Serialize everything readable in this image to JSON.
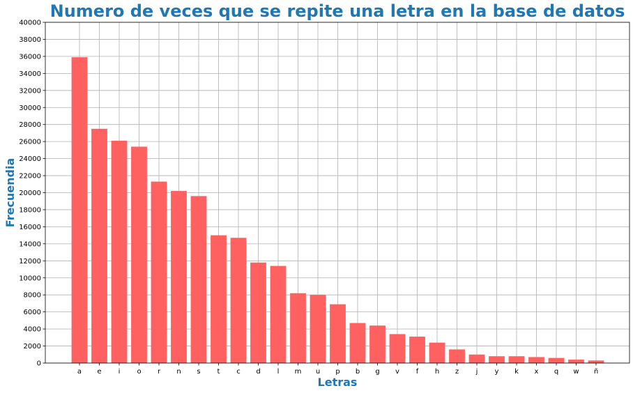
{
  "chart_data": {
    "type": "bar",
    "title": "Numero de veces que se repite una letra en la base de datos",
    "xlabel": "Letras",
    "ylabel": "Frecuendia",
    "categories": [
      "a",
      "e",
      "i",
      "o",
      "r",
      "n",
      "s",
      "t",
      "c",
      "d",
      "l",
      "m",
      "u",
      "p",
      "b",
      "g",
      "v",
      "f",
      "h",
      "z",
      "j",
      "y",
      "k",
      "x",
      "q",
      "w",
      "ñ"
    ],
    "values": [
      35900,
      27500,
      26100,
      25400,
      21300,
      20200,
      19600,
      15000,
      14700,
      11800,
      11400,
      8200,
      8000,
      6900,
      4700,
      4400,
      3400,
      3100,
      2400,
      1600,
      1000,
      800,
      800,
      700,
      600,
      400,
      300
    ],
    "ylim": [
      0,
      40000
    ],
    "yticks": [
      0,
      2000,
      4000,
      6000,
      8000,
      10000,
      12000,
      14000,
      16000,
      18000,
      20000,
      22000,
      24000,
      26000,
      28000,
      30000,
      32000,
      34000,
      36000,
      38000,
      40000
    ],
    "grid": true,
    "bar_color": "#ff6161",
    "title_color": "#1f77b4",
    "label_color": "#1f77b4"
  }
}
